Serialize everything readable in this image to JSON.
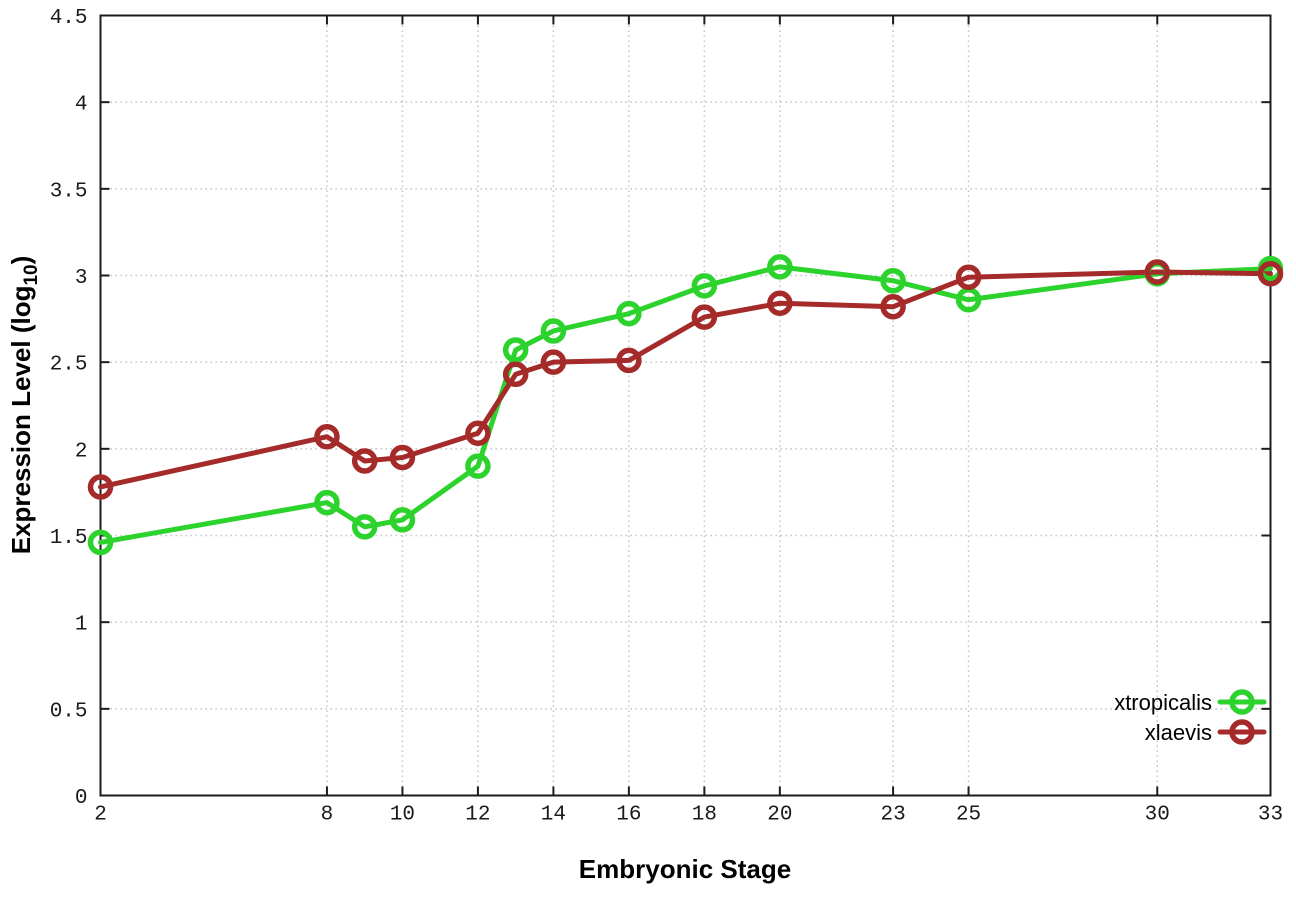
{
  "chart_data": {
    "type": "line",
    "title": "",
    "xlabel": "Embryonic Stage",
    "ylabel_prefix": "Expression Level (log",
    "ylabel_sub": "10",
    "ylabel_suffix": ")",
    "x": [
      2,
      8,
      9,
      10,
      12,
      13,
      14,
      16,
      18,
      20,
      23,
      25,
      30,
      33
    ],
    "series": [
      {
        "name": "xtropicalis",
        "color": "#2cd32c",
        "marker": "open-circle",
        "values": [
          1.46,
          1.69,
          1.55,
          1.59,
          1.9,
          2.57,
          2.68,
          2.78,
          2.94,
          3.05,
          2.97,
          2.86,
          3.01,
          3.04
        ]
      },
      {
        "name": "xlaevis",
        "color": "#a52a2a",
        "marker": "open-circle",
        "values": [
          1.78,
          2.07,
          1.93,
          1.95,
          2.09,
          2.43,
          2.5,
          2.51,
          2.76,
          2.84,
          2.82,
          2.99,
          3.02,
          3.01
        ]
      }
    ],
    "xticks": [
      2,
      8,
      10,
      12,
      14,
      16,
      18,
      20,
      23,
      25,
      30,
      33
    ],
    "yticks": [
      0,
      0.5,
      1,
      1.5,
      2,
      2.5,
      3,
      3.5,
      4,
      4.5
    ],
    "xlim": [
      2,
      33
    ],
    "ylim": [
      0,
      4.5
    ],
    "grid": "dotted",
    "legend_position": "inside-bottom-right",
    "background": "#ffffff",
    "border_color": "#1c1c1c",
    "grid_color": "#c4c4c4"
  }
}
